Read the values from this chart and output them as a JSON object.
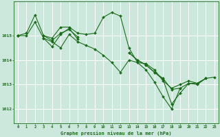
{
  "xlabel": "Graphe pression niveau de la mer (hPa)",
  "background_color": "#cce8dc",
  "grid_color": "#ffffff",
  "line_color": "#1a6b1a",
  "marker_color": "#1a6b1a",
  "x_ticks": [
    0,
    1,
    2,
    3,
    4,
    5,
    6,
    7,
    8,
    9,
    10,
    11,
    12,
    13,
    14,
    15,
    16,
    17,
    18,
    19,
    20,
    21,
    22,
    23
  ],
  "y_ticks": [
    1012,
    1013,
    1014,
    1015
  ],
  "ylim": [
    1011.4,
    1016.4
  ],
  "xlim": [
    -0.5,
    23.5
  ],
  "series": [
    [
      1015.0,
      1015.0,
      1015.55,
      1014.9,
      1014.75,
      1014.5,
      1015.05,
      1014.75,
      1014.6,
      1014.45,
      1014.2,
      1013.9,
      1013.5,
      1014.0,
      1013.9,
      1013.85,
      1013.6,
      1013.15,
      1012.85,
      1013.0,
      1013.15,
      1013.05,
      1013.25,
      1013.3
    ],
    [
      1015.0,
      1015.1,
      1015.85,
      1015.0,
      1014.9,
      1015.35,
      1015.35,
      1015.1,
      1015.05,
      1015.1,
      1015.75,
      1015.95,
      1015.8,
      1014.5,
      1013.9,
      1013.6,
      1013.1,
      1012.5,
      1012.0,
      1012.85,
      null,
      null,
      null,
      null
    ],
    [
      1015.0,
      null,
      null,
      1014.9,
      1014.55,
      1015.05,
      1015.3,
      1014.85,
      null,
      null,
      null,
      null,
      null,
      1014.3,
      1014.0,
      1013.8,
      1013.5,
      1013.2,
      1012.2,
      1012.65,
      1013.05,
      1013.0,
      1013.25,
      null
    ],
    [
      1015.0,
      null,
      null,
      1015.0,
      1014.8,
      1015.1,
      1015.25,
      1014.95,
      null,
      null,
      null,
      null,
      null,
      1014.3,
      1014.0,
      1013.8,
      1013.5,
      1013.25,
      1012.8,
      1012.85,
      1013.05,
      1013.05,
      1013.25,
      null
    ]
  ]
}
